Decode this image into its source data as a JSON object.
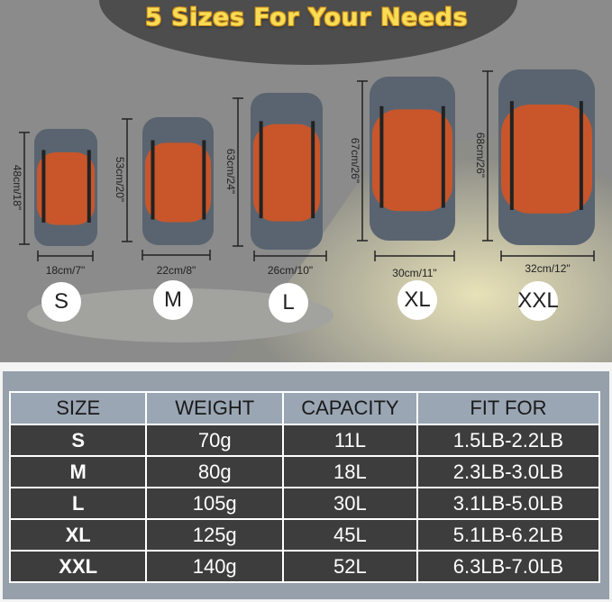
{
  "title": "5 Sizes For Your Needs",
  "colors": {
    "bag_orange": "#c8562a",
    "bag_gray": "#5a6470",
    "title_yellow": "#f9dc55",
    "table_header": "#9aa6b3",
    "table_row": "#3d3d3d",
    "panel": "#96a0ab"
  },
  "bags": [
    {
      "size": "S",
      "height": "48cm/18\"",
      "width": "18cm/7\""
    },
    {
      "size": "M",
      "height": "53cm/20\"",
      "width": "22cm/8\""
    },
    {
      "size": "L",
      "height": "63cm/24\"",
      "width": "26cm/10\""
    },
    {
      "size": "XL",
      "height": "67cm/26\"",
      "width": "30cm/11\""
    },
    {
      "size": "XXL",
      "height": "68cm/26\"",
      "width": "32cm/12\""
    }
  ],
  "table": {
    "headers": [
      "SIZE",
      "WEIGHT",
      "CAPACITY",
      "FIT FOR"
    ],
    "rows": [
      [
        "S",
        "70g",
        "11L",
        "1.5LB-2.2LB"
      ],
      [
        "M",
        "80g",
        "18L",
        "2.3LB-3.0LB"
      ],
      [
        "L",
        "105g",
        "30L",
        "3.1LB-5.0LB"
      ],
      [
        "XL",
        "125g",
        "45L",
        "5.1LB-6.2LB"
      ],
      [
        "XXL",
        "140g",
        "52L",
        "6.3LB-7.0LB"
      ]
    ]
  }
}
